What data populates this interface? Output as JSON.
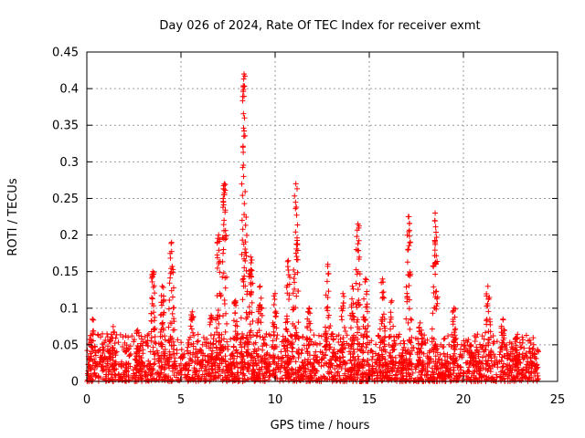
{
  "chart_data": {
    "type": "scatter",
    "title": "Day 026 of 2024, Rate Of TEC Index for receiver exmt",
    "xlabel": "GPS time / hours",
    "ylabel": "ROTI / TECUs",
    "xlim": [
      0,
      25
    ],
    "ylim": [
      0,
      0.45
    ],
    "xticks": [
      "0",
      "5",
      "10",
      "15",
      "20",
      "25"
    ],
    "yticks": [
      "0",
      "0.05",
      "0.1",
      "0.15",
      "0.2",
      "0.25",
      "0.3",
      "0.35",
      "0.4",
      "0.45"
    ],
    "grid": true,
    "marker": "+",
    "color": "#ff0000",
    "data_span": [
      0,
      24
    ],
    "baseline_level": 0.03,
    "peaks": [
      {
        "x": 0.3,
        "y": 0.085
      },
      {
        "x": 1.4,
        "y": 0.075
      },
      {
        "x": 2.7,
        "y": 0.07
      },
      {
        "x": 3.5,
        "y": 0.15
      },
      {
        "x": 4.0,
        "y": 0.13
      },
      {
        "x": 4.5,
        "y": 0.19
      },
      {
        "x": 5.6,
        "y": 0.095
      },
      {
        "x": 6.6,
        "y": 0.09
      },
      {
        "x": 7.0,
        "y": 0.2
      },
      {
        "x": 7.3,
        "y": 0.27
      },
      {
        "x": 7.9,
        "y": 0.11
      },
      {
        "x": 8.35,
        "y": 0.42
      },
      {
        "x": 8.7,
        "y": 0.17
      },
      {
        "x": 9.2,
        "y": 0.13
      },
      {
        "x": 10.0,
        "y": 0.12
      },
      {
        "x": 10.7,
        "y": 0.165
      },
      {
        "x": 11.1,
        "y": 0.27
      },
      {
        "x": 11.8,
        "y": 0.1
      },
      {
        "x": 12.8,
        "y": 0.16
      },
      {
        "x": 13.6,
        "y": 0.12
      },
      {
        "x": 14.1,
        "y": 0.13
      },
      {
        "x": 14.4,
        "y": 0.215
      },
      {
        "x": 14.8,
        "y": 0.14
      },
      {
        "x": 15.7,
        "y": 0.14
      },
      {
        "x": 16.2,
        "y": 0.11
      },
      {
        "x": 17.1,
        "y": 0.225
      },
      {
        "x": 17.7,
        "y": 0.08
      },
      {
        "x": 18.5,
        "y": 0.23
      },
      {
        "x": 19.5,
        "y": 0.1
      },
      {
        "x": 20.4,
        "y": 0.05
      },
      {
        "x": 21.3,
        "y": 0.13
      },
      {
        "x": 22.1,
        "y": 0.085
      },
      {
        "x": 22.8,
        "y": 0.06
      },
      {
        "x": 23.7,
        "y": 0.045
      }
    ]
  }
}
